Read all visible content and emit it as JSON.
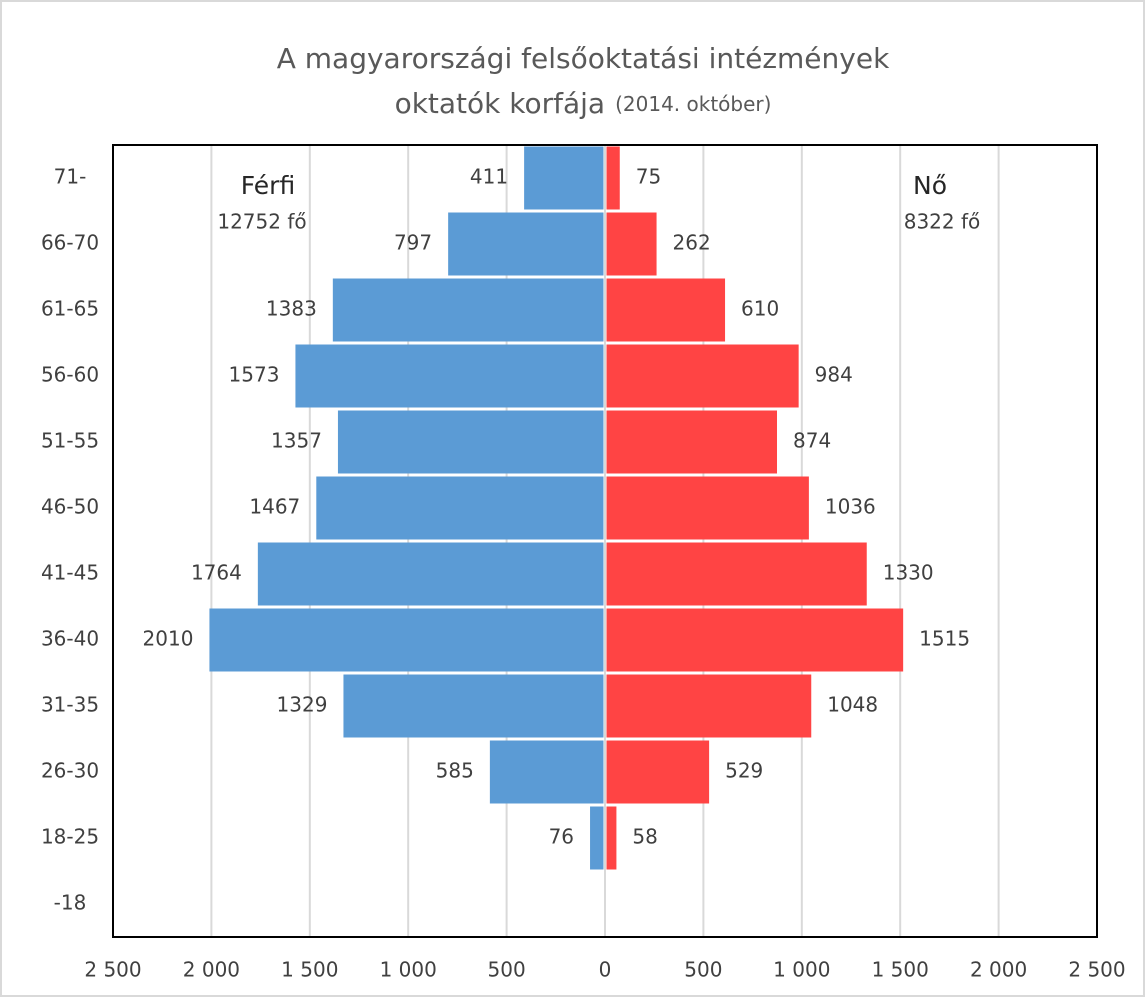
{
  "chart_data": {
    "type": "pyramid",
    "title": [
      "A magyarországi felsőoktatási intézmények",
      "oktatók korfája"
    ],
    "subtitle": "(2014. október)",
    "categories": [
      "71-",
      "66-70",
      "61-65",
      "56-60",
      "51-55",
      "46-50",
      "41-45",
      "36-40",
      "31-35",
      "26-30",
      "18-25",
      "-18"
    ],
    "series": [
      {
        "name": "Férfi",
        "annotation": "12752 fő",
        "side": "left",
        "color": "#5b9bd5",
        "values": [
          411,
          797,
          1383,
          1573,
          1357,
          1467,
          1764,
          2010,
          1329,
          585,
          76,
          null
        ]
      },
      {
        "name": "Nő",
        "annotation": "8322 fő",
        "side": "right",
        "color": "#ff4444",
        "values": [
          75,
          262,
          610,
          984,
          874,
          1036,
          1330,
          1515,
          1048,
          529,
          58,
          null
        ]
      }
    ],
    "xlim": [
      -2500,
      2500
    ],
    "xticks": [
      {
        "value": -2500,
        "label": "2 500"
      },
      {
        "value": -2000,
        "label": "2 000"
      },
      {
        "value": -1500,
        "label": "1 500"
      },
      {
        "value": -1000,
        "label": "1 000"
      },
      {
        "value": -500,
        "label": "500"
      },
      0,
      500,
      {
        "value": 1000,
        "label": "1 000"
      },
      {
        "value": 1500,
        "label": "1 500"
      },
      {
        "value": 2000,
        "label": "2 000"
      },
      {
        "value": 2500,
        "label": "2 500"
      }
    ],
    "grid": true
  }
}
